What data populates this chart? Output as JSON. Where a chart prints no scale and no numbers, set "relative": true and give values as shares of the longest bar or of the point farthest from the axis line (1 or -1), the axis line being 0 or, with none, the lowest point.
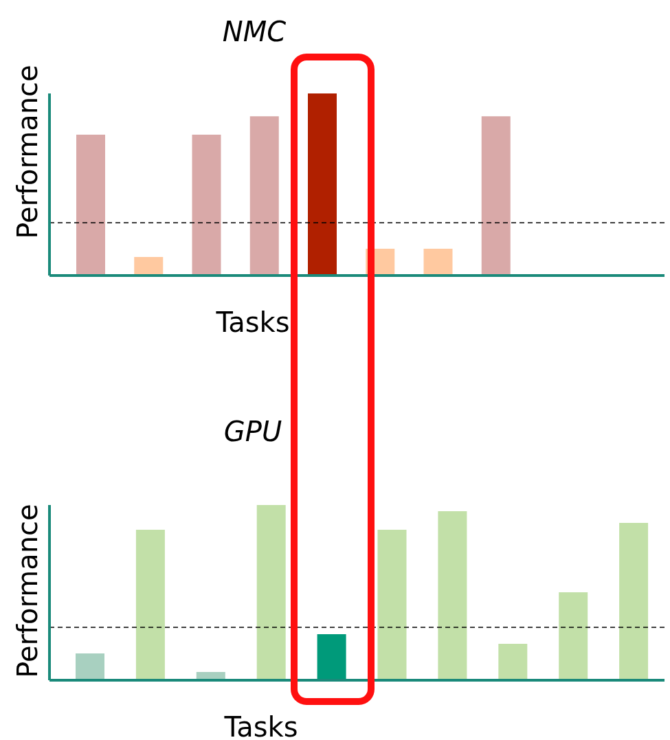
{
  "chart_data": [
    {
      "type": "bar",
      "title": "NMC",
      "xlabel": "Tasks",
      "ylabel": "Performance",
      "relative": true,
      "categories": [
        null,
        null,
        null,
        null,
        null,
        null,
        null,
        null
      ],
      "values": [
        0.774,
        0.102,
        0.774,
        0.875,
        1,
        0.147,
        0.147,
        0.875
      ],
      "colors": [
        "#d9a9a8",
        "#ffc9a0",
        "#d9a9a8",
        "#d9a9a8",
        "#b02000",
        "#ffc9a0",
        "#ffc9a0",
        "#d9a9a8"
      ],
      "ref_lines": [
        {
          "axis": "y",
          "value": 0.29,
          "color": "#000000",
          "line_style": "dashed"
        }
      ]
    },
    {
      "type": "bar",
      "title": "GPU",
      "xlabel": "Tasks",
      "ylabel": "Performance",
      "relative": true,
      "categories": [
        null,
        null,
        null,
        null,
        null,
        null,
        null,
        null,
        null,
        null
      ],
      "values": [
        0.153,
        0.859,
        0.047,
        1,
        0.263,
        0.859,
        0.965,
        0.208,
        0.502,
        0.898
      ],
      "colors": [
        "#a8d0c0",
        "#c2e0a8",
        "#a8d0c0",
        "#c2e0a8",
        "#009a7a",
        "#c2e0a8",
        "#c2e0a8",
        "#c2e0a8",
        "#c2e0a8",
        "#c2e0a8"
      ],
      "ref_lines": [
        {
          "axis": "y",
          "value": 0.302,
          "color": "#000000",
          "line_style": "dashed"
        }
      ]
    }
  ]
}
